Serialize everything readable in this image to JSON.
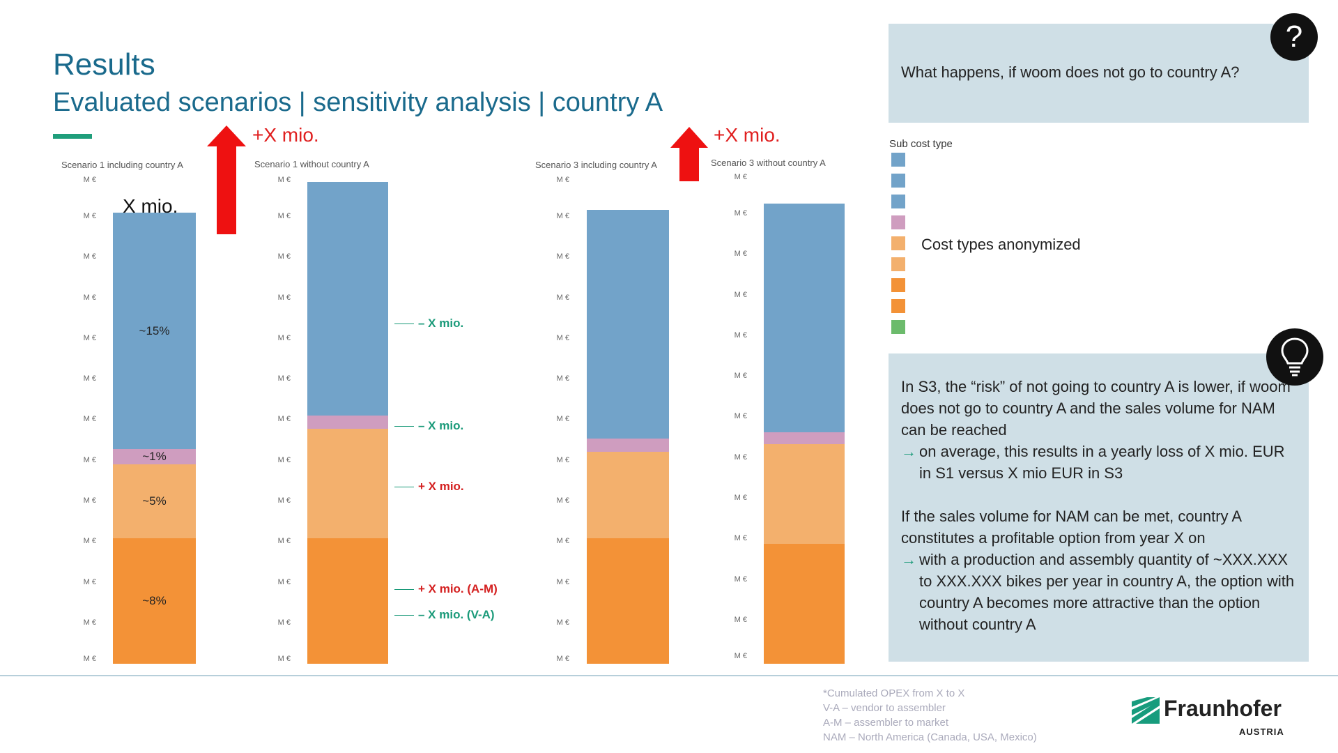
{
  "title": "Results",
  "subtitle": "Evaluated scenarios | sensitivity analysis | country A",
  "charts": [
    {
      "title_prefix": "Scenario 1 including ",
      "title_suffix": "country A"
    },
    {
      "title_prefix": "Scenario 1 without ",
      "title_suffix": "country A"
    },
    {
      "title_prefix": "Scenario 3 including ",
      "title_suffix": "country A"
    },
    {
      "title_prefix": "Scenario 3 without ",
      "title_suffix": "country A"
    }
  ],
  "y_tick_label": "M €",
  "arrows": [
    {
      "label": "+X mio."
    },
    {
      "label": "+X mio."
    }
  ],
  "chart_data": [
    {
      "type": "bar",
      "title": "Scenario 1 including country A",
      "stacked": true,
      "total_label": "X mio.",
      "segments": [
        {
          "value": 8.2,
          "color": "#f39237",
          "label": "~8%"
        },
        {
          "value": 4.8,
          "color": "#f3b06d",
          "label": "~5%"
        },
        {
          "value": 1.0,
          "color": "#cf9dbf",
          "label": "~1%"
        },
        {
          "value": 15.4,
          "color": "#72a3c9",
          "label": "~15%"
        }
      ]
    },
    {
      "type": "bar",
      "title": "Scenario 1 without country A",
      "stacked": true,
      "segments": [
        {
          "value": 8.2,
          "color": "#f39237"
        },
        {
          "value": 7.1,
          "color": "#f3b06d"
        },
        {
          "value": 0.9,
          "color": "#cf9dbf"
        },
        {
          "value": 15.2,
          "color": "#72a3c9"
        }
      ],
      "annotations": [
        {
          "text": "– X mio.",
          "color": "#1a9a79"
        },
        {
          "text": "– X mio.",
          "color": "#1a9a79"
        },
        {
          "text": "+ X mio.",
          "color": "#d42020"
        },
        {
          "text": "+ X mio. (A-M)",
          "color": "#d42020"
        },
        {
          "text": "– X mio. (V-A)",
          "color": "#1a9a79"
        }
      ]
    },
    {
      "type": "bar",
      "title": "Scenario 3 including country A",
      "stacked": true,
      "segments": [
        {
          "value": 8.2,
          "color": "#f39237"
        },
        {
          "value": 5.6,
          "color": "#f3b06d"
        },
        {
          "value": 0.9,
          "color": "#cf9dbf"
        },
        {
          "value": 14.9,
          "color": "#72a3c9"
        }
      ]
    },
    {
      "type": "bar",
      "title": "Scenario 3 without country A",
      "stacked": true,
      "segments": [
        {
          "value": 7.8,
          "color": "#f39237"
        },
        {
          "value": 6.5,
          "color": "#f3b06d"
        },
        {
          "value": 0.8,
          "color": "#cf9dbf"
        },
        {
          "value": 14.9,
          "color": "#72a3c9"
        }
      ]
    }
  ],
  "question_panel": {
    "icon": "question-mark-icon",
    "symbol": "?",
    "text": "What happens, if woom does not go to country A?"
  },
  "legend": {
    "title": "Sub cost type",
    "label": "Cost types anonymized",
    "colors": [
      "#72a3c9",
      "#72a3c9",
      "#72a3c9",
      "#cf9dbf",
      "#f3b06d",
      "#f3b06d",
      "#f39237",
      "#f39237",
      "#6cbb6c"
    ]
  },
  "insight_panel": {
    "icon": "lightbulb-icon",
    "p1": "In S3, the “risk” of not going to country A is lower, if woom does not go to country A and the sales volume for NAM can be reached",
    "p1_arrow": "on average, this results in a yearly loss of X mio. EUR in S1 versus X mio EUR in S3",
    "p2": "If the sales volume for NAM can be met, country A constitutes a profitable option from year X on",
    "p2_arrow": "with a production and assembly quantity of ~XXX.XXX to XXX.XXX bikes per year in country A, the option with country A becomes more attractive than the option without country A",
    "arrow_glyph": "→"
  },
  "footnotes": [
    "*Cumulated OPEX from X to X",
    "V-A – vendor to assembler",
    "A-M – assembler to market",
    "NAM – North America (Canada, USA, Mexico)"
  ],
  "logo": {
    "name": "Fraunhofer",
    "sub": "AUSTRIA",
    "color": "#179c7d"
  }
}
